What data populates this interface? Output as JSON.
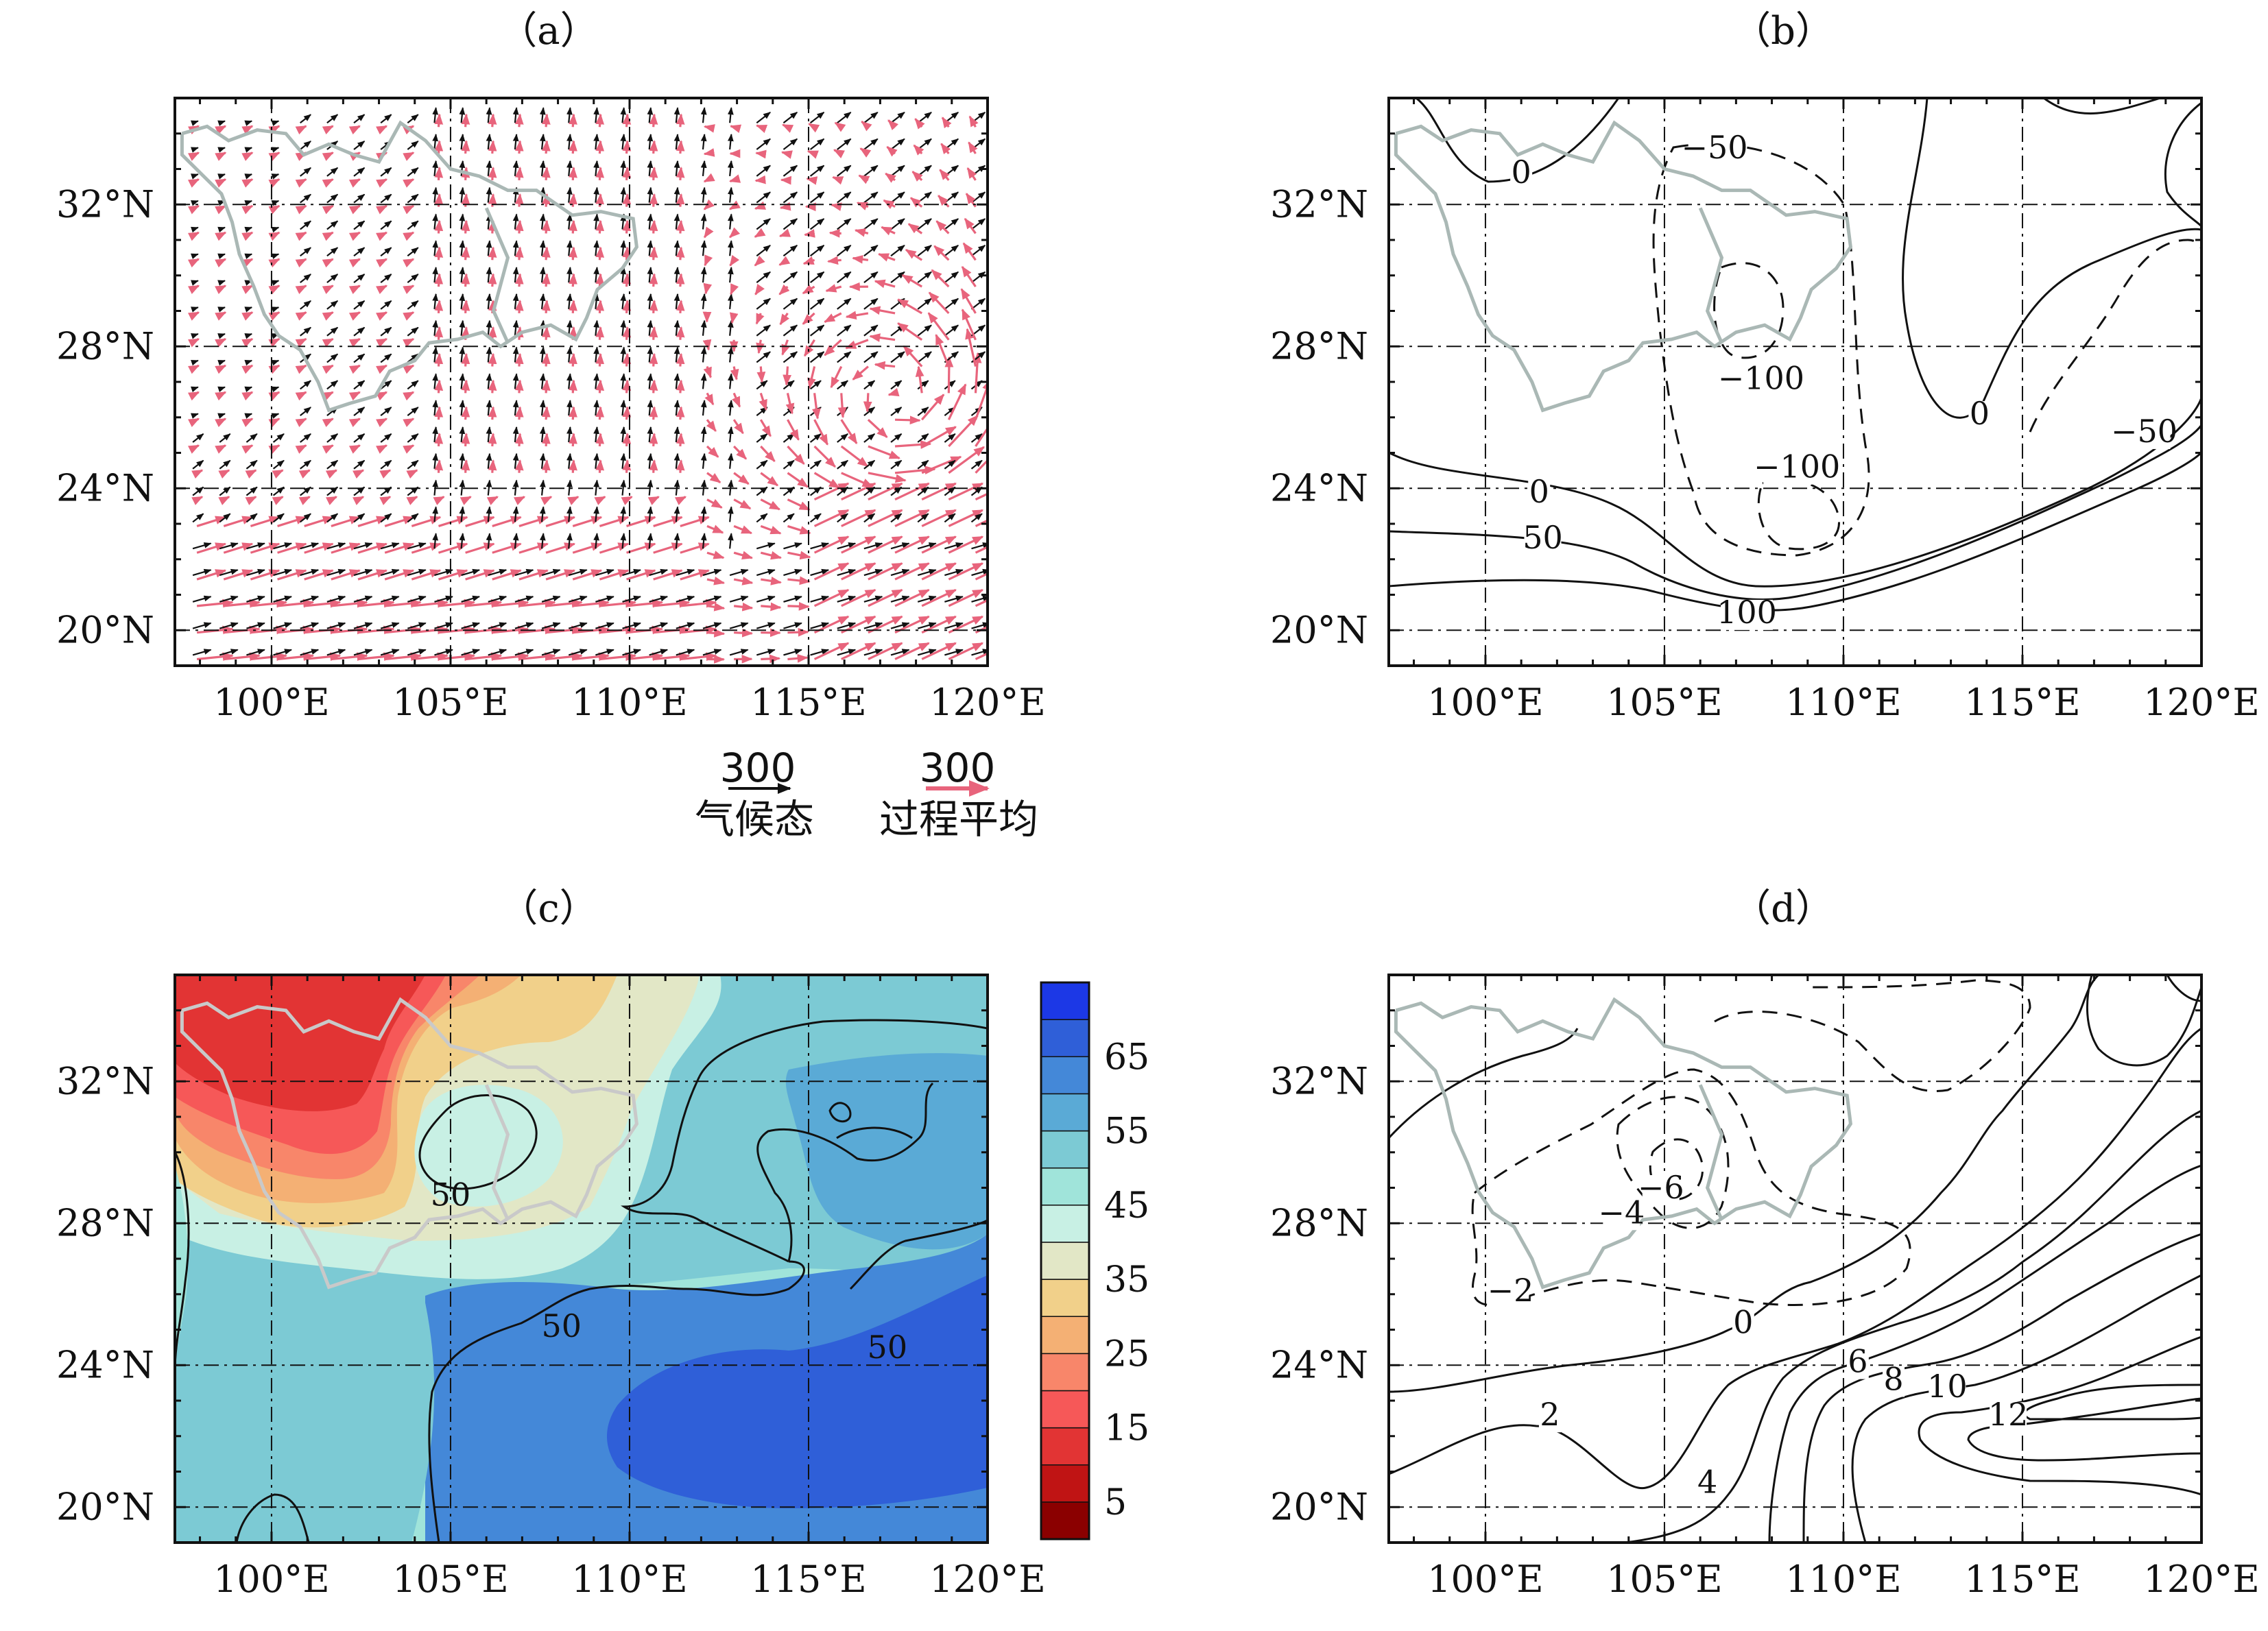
{
  "chart_data": [
    {
      "panel": "a",
      "type": "vector",
      "title": "（a）",
      "x_ticks": [
        "100°E",
        "105°E",
        "110°E",
        "115°E",
        "120°E"
      ],
      "y_ticks": [
        "20°N",
        "24°N",
        "28°N",
        "32°N"
      ],
      "xlim": [
        97.3,
        120
      ],
      "ylim": [
        19,
        35
      ],
      "reference_vectors": [
        {
          "magnitude": "300",
          "label": "气候态",
          "color": "#111111"
        },
        {
          "magnitude": "300",
          "label": "过程平均",
          "color": "#e8647c"
        }
      ]
    },
    {
      "panel": "b",
      "type": "contour",
      "title": "（b）",
      "x_ticks": [
        "100°E",
        "105°E",
        "110°E",
        "115°E",
        "120°E"
      ],
      "y_ticks": [
        "20°N",
        "24°N",
        "28°N",
        "32°N"
      ],
      "xlim": [
        97.3,
        120
      ],
      "ylim": [
        19,
        35
      ],
      "contour_labels": [
        {
          "text": "0",
          "lon": 101.0,
          "lat": 32.6
        },
        {
          "text": "−50",
          "lon": 106.4,
          "lat": 33.3
        },
        {
          "text": "−100",
          "lon": 107.7,
          "lat": 26.8
        },
        {
          "text": "0",
          "lon": 113.8,
          "lat": 25.8
        },
        {
          "text": "−50",
          "lon": 118.4,
          "lat": 25.3
        },
        {
          "text": "−100",
          "lon": 108.7,
          "lat": 24.3
        },
        {
          "text": "0",
          "lon": 101.5,
          "lat": 23.6
        },
        {
          "text": "50",
          "lon": 101.6,
          "lat": 22.3
        },
        {
          "text": "100",
          "lon": 107.3,
          "lat": 20.2
        }
      ]
    },
    {
      "panel": "c",
      "type": "filled_contour",
      "title": "（c）",
      "x_ticks": [
        "100°E",
        "105°E",
        "110°E",
        "115°E",
        "120°E"
      ],
      "y_ticks": [
        "20°N",
        "24°N",
        "28°N",
        "32°N"
      ],
      "xlim": [
        97.3,
        120
      ],
      "ylim": [
        19,
        35
      ],
      "colorbar": {
        "levels": [
          "5",
          "15",
          "25",
          "35",
          "45",
          "55",
          "65"
        ],
        "colors": [
          "#8b0000",
          "#c01414",
          "#e23434",
          "#f65858",
          "#f8866a",
          "#f4b074",
          "#f1d08a",
          "#e2e7c6",
          "#c8f0e4",
          "#a0e4da",
          "#7ccad4",
          "#5aaad6",
          "#4488d8",
          "#2f5fd8",
          "#1c38e6"
        ]
      },
      "contour_labels": [
        {
          "text": "50",
          "lon": 105.0,
          "lat": 28.5
        },
        {
          "text": "50",
          "lon": 108.1,
          "lat": 24.8
        },
        {
          "text": "50",
          "lon": 117.2,
          "lat": 24.2
        }
      ]
    },
    {
      "panel": "d",
      "type": "contour",
      "title": "（d）",
      "x_ticks": [
        "100°E",
        "105°E",
        "110°E",
        "115°E",
        "120°E"
      ],
      "y_ticks": [
        "20°N",
        "24°N",
        "28°N",
        "32°N"
      ],
      "xlim": [
        97.3,
        120
      ],
      "ylim": [
        19,
        35
      ],
      "contour_labels": [
        {
          "text": "−6",
          "lon": 104.9,
          "lat": 28.7
        },
        {
          "text": "−4",
          "lon": 103.8,
          "lat": 28.0
        },
        {
          "text": "−2",
          "lon": 100.7,
          "lat": 25.8
        },
        {
          "text": "0",
          "lon": 107.2,
          "lat": 24.9
        },
        {
          "text": "2",
          "lon": 101.8,
          "lat": 22.3
        },
        {
          "text": "4",
          "lon": 106.2,
          "lat": 20.4
        },
        {
          "text": "6",
          "lon": 110.4,
          "lat": 23.8
        },
        {
          "text": "8",
          "lon": 111.4,
          "lat": 23.3
        },
        {
          "text": "10",
          "lon": 112.9,
          "lat": 23.1
        },
        {
          "text": "12",
          "lon": 114.6,
          "lat": 22.3
        }
      ]
    }
  ]
}
